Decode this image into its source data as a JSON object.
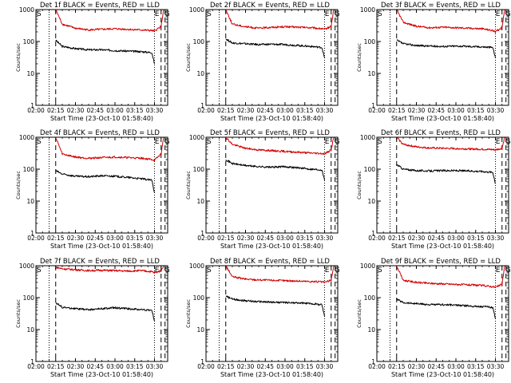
{
  "figure": {
    "colors": {
      "events": "#000000",
      "lld": "#d40000",
      "axes": "#000000",
      "background": "#ffffff"
    },
    "common": {
      "xlabel": "Start Time (23-Oct-10 01:58:40)",
      "ylabel": "Counts/sec",
      "xticks": [
        "02:00",
        "02:15",
        "02:30",
        "02:45",
        "03:00",
        "03:15",
        "03:30"
      ],
      "yticks": [
        "1",
        "10",
        "100",
        "1000"
      ],
      "markers": {
        "s": "S",
        "e": "E",
        "a": "A",
        "f": "F",
        "g": "G"
      }
    }
  },
  "chart_data": [
    {
      "type": "line",
      "title": "Det 1f BLACK = Events, RED = LLD",
      "xlabel": "Start Time (23-Oct-10 01:58:40)",
      "ylabel": "Counts/sec",
      "x_unit": "minutes after 02:00",
      "xlim": [
        0,
        100
      ],
      "ylim": [
        1,
        1000
      ],
      "yscale": "log",
      "x_dotted": [
        10,
        90
      ],
      "x_dashed": [
        15,
        95,
        98
      ],
      "top_labels": [
        "S",
        "E",
        "G"
      ],
      "series": [
        {
          "name": "Events",
          "color": "#000000",
          "x": [
            15,
            20,
            30,
            40,
            50,
            60,
            70,
            80,
            88,
            90
          ],
          "y": [
            110,
            70,
            60,
            55,
            55,
            52,
            50,
            48,
            45,
            20
          ]
        },
        {
          "name": "LLD",
          "color": "#d40000",
          "x": [
            15,
            20,
            30,
            40,
            50,
            60,
            70,
            80,
            88,
            90,
            95,
            97
          ],
          "y": [
            1000,
            350,
            260,
            230,
            240,
            250,
            240,
            230,
            220,
            210,
            300,
            1000
          ]
        }
      ]
    },
    {
      "type": "line",
      "title": "Det 2f BLACK = Events, RED = LLD",
      "xlabel": "Start Time (23-Oct-10 01:58:40)",
      "ylabel": "Counts/sec",
      "x_unit": "minutes after 02:00",
      "xlim": [
        0,
        100
      ],
      "ylim": [
        1,
        1000
      ],
      "yscale": "log",
      "x_dotted": [
        10,
        90
      ],
      "x_dashed": [
        15,
        95,
        98
      ],
      "top_labels": [
        "S",
        "E",
        "G"
      ],
      "series": [
        {
          "name": "Events",
          "color": "#000000",
          "x": [
            15,
            20,
            30,
            40,
            50,
            60,
            70,
            80,
            88,
            90
          ],
          "y": [
            120,
            90,
            85,
            80,
            82,
            80,
            75,
            70,
            65,
            30
          ]
        },
        {
          "name": "LLD",
          "color": "#d40000",
          "x": [
            15,
            20,
            30,
            40,
            50,
            60,
            70,
            80,
            88,
            90,
            95,
            97
          ],
          "y": [
            1000,
            350,
            290,
            260,
            280,
            290,
            280,
            270,
            250,
            240,
            300,
            1000
          ]
        }
      ]
    },
    {
      "type": "line",
      "title": "Det 3f BLACK = Events, RED = LLD",
      "xlabel": "Start Time (23-Oct-10 01:58:40)",
      "ylabel": "Counts/sec",
      "x_unit": "minutes after 02:00",
      "xlim": [
        0,
        100
      ],
      "ylim": [
        1,
        1000
      ],
      "yscale": "log",
      "x_dotted": [
        10,
        90
      ],
      "x_dashed": [
        15,
        95,
        98
      ],
      "top_labels": [
        "S",
        "E",
        "G"
      ],
      "series": [
        {
          "name": "Events",
          "color": "#000000",
          "x": [
            15,
            20,
            30,
            40,
            50,
            60,
            70,
            80,
            88,
            90
          ],
          "y": [
            110,
            85,
            75,
            72,
            70,
            72,
            70,
            68,
            65,
            30
          ]
        },
        {
          "name": "LLD",
          "color": "#d40000",
          "x": [
            15,
            20,
            30,
            40,
            50,
            60,
            70,
            80,
            88,
            90,
            95,
            97
          ],
          "y": [
            1000,
            400,
            300,
            270,
            280,
            270,
            260,
            250,
            220,
            200,
            280,
            1000
          ]
        }
      ]
    },
    {
      "type": "line",
      "title": "Det 4f BLACK = Events, RED = LLD",
      "xlabel": "Start Time (23-Oct-10 01:58:40)",
      "ylabel": "Counts/sec",
      "x_unit": "minutes after 02:00",
      "xlim": [
        0,
        100
      ],
      "ylim": [
        1,
        1000
      ],
      "yscale": "log",
      "x_dotted": [
        10,
        90
      ],
      "x_dashed": [
        15,
        95,
        98
      ],
      "top_labels": [
        "S",
        "E",
        "G"
      ],
      "series": [
        {
          "name": "Events",
          "color": "#000000",
          "x": [
            15,
            20,
            30,
            40,
            50,
            60,
            70,
            80,
            88,
            90
          ],
          "y": [
            90,
            70,
            60,
            58,
            62,
            60,
            55,
            50,
            45,
            18
          ]
        },
        {
          "name": "LLD",
          "color": "#d40000",
          "x": [
            15,
            20,
            30,
            40,
            50,
            60,
            70,
            80,
            88,
            90,
            95,
            97
          ],
          "y": [
            1000,
            300,
            240,
            220,
            230,
            240,
            230,
            220,
            200,
            190,
            300,
            1000
          ]
        }
      ]
    },
    {
      "type": "line",
      "title": "Det 5f BLACK = Events, RED = LLD",
      "xlabel": "Start Time (23-Oct-10 01:58:40)",
      "ylabel": "Counts/sec",
      "x_unit": "minutes after 02:00",
      "xlim": [
        0,
        100
      ],
      "ylim": [
        1,
        1000
      ],
      "yscale": "log",
      "x_dotted": [
        10,
        90
      ],
      "x_dashed": [
        15,
        95,
        98
      ],
      "top_labels": [
        "S",
        "E",
        "G"
      ],
      "series": [
        {
          "name": "Events",
          "color": "#000000",
          "x": [
            15,
            20,
            30,
            40,
            50,
            60,
            70,
            80,
            88,
            90
          ],
          "y": [
            200,
            150,
            130,
            120,
            115,
            120,
            110,
            100,
            95,
            45
          ]
        },
        {
          "name": "LLD",
          "color": "#d40000",
          "x": [
            15,
            20,
            30,
            40,
            50,
            60,
            70,
            80,
            88,
            90,
            95,
            97
          ],
          "y": [
            1000,
            600,
            450,
            400,
            380,
            360,
            340,
            320,
            310,
            300,
            400,
            1000
          ]
        }
      ]
    },
    {
      "type": "line",
      "title": "Det 6f BLACK = Events, RED = LLD",
      "xlabel": "Start Time (23-Oct-10 01:58:40)",
      "ylabel": "Counts/sec",
      "x_unit": "minutes after 02:00",
      "xlim": [
        0,
        100
      ],
      "ylim": [
        1,
        1000
      ],
      "yscale": "log",
      "x_dotted": [
        10,
        90
      ],
      "x_dashed": [
        15,
        95,
        98
      ],
      "top_labels": [
        "S",
        "E",
        "G"
      ],
      "series": [
        {
          "name": "Events",
          "color": "#000000",
          "x": [
            15,
            20,
            30,
            40,
            50,
            60,
            70,
            80,
            88,
            90
          ],
          "y": [
            140,
            100,
            90,
            88,
            90,
            90,
            88,
            85,
            80,
            35
          ]
        },
        {
          "name": "LLD",
          "color": "#d40000",
          "x": [
            15,
            20,
            30,
            40,
            50,
            60,
            70,
            80,
            88,
            90,
            95,
            97
          ],
          "y": [
            1000,
            600,
            500,
            460,
            450,
            440,
            430,
            420,
            410,
            400,
            450,
            1000
          ]
        }
      ]
    },
    {
      "type": "line",
      "title": "Det 7f BLACK = Events, RED = LLD",
      "xlabel": "Start Time (23-Oct-10 01:58:40)",
      "ylabel": "Counts/sec",
      "x_unit": "minutes after 02:00",
      "xlim": [
        0,
        100
      ],
      "ylim": [
        1,
        1000
      ],
      "yscale": "log",
      "x_dotted": [
        10,
        90
      ],
      "x_dashed": [
        15,
        95,
        98
      ],
      "top_labels": [
        "S",
        "E",
        "G"
      ],
      "series": [
        {
          "name": "Events",
          "color": "#000000",
          "x": [
            15,
            20,
            30,
            40,
            50,
            60,
            70,
            80,
            88,
            90
          ],
          "y": [
            70,
            50,
            45,
            42,
            45,
            48,
            45,
            42,
            40,
            18
          ]
        },
        {
          "name": "LLD",
          "color": "#d40000",
          "x": [
            15,
            20,
            30,
            40,
            50,
            60,
            70,
            80,
            88,
            90,
            95,
            97
          ],
          "y": [
            900,
            800,
            750,
            700,
            720,
            700,
            680,
            700,
            650,
            600,
            700,
            1000
          ]
        }
      ]
    },
    {
      "type": "line",
      "title": "Det 8f BLACK = Events, RED = LLD",
      "xlabel": "Start Time (23-Oct-10 01:58:40)",
      "ylabel": "Counts/sec",
      "x_unit": "minutes after 02:00",
      "xlim": [
        0,
        100
      ],
      "ylim": [
        1,
        1000
      ],
      "yscale": "log",
      "x_dotted": [
        10,
        90
      ],
      "x_dashed": [
        15,
        95,
        98
      ],
      "top_labels": [
        "S",
        "E",
        "G"
      ],
      "series": [
        {
          "name": "Events",
          "color": "#000000",
          "x": [
            15,
            20,
            30,
            40,
            50,
            60,
            70,
            80,
            88,
            90
          ],
          "y": [
            110,
            90,
            80,
            75,
            72,
            70,
            68,
            65,
            60,
            25
          ]
        },
        {
          "name": "LLD",
          "color": "#d40000",
          "x": [
            15,
            20,
            30,
            40,
            50,
            60,
            70,
            80,
            88,
            90,
            95,
            97
          ],
          "y": [
            1000,
            450,
            380,
            360,
            350,
            340,
            330,
            320,
            310,
            300,
            350,
            1000
          ]
        }
      ]
    },
    {
      "type": "line",
      "title": "Det 9f BLACK = Events, RED = LLD",
      "xlabel": "Start Time (23-Oct-10 01:58:40)",
      "ylabel": "Counts/sec",
      "x_unit": "minutes after 02:00",
      "xlim": [
        0,
        100
      ],
      "ylim": [
        1,
        1000
      ],
      "yscale": "log",
      "x_dotted": [
        10,
        90
      ],
      "x_dashed": [
        15,
        95,
        98
      ],
      "top_labels": [
        "S",
        "E",
        "G"
      ],
      "series": [
        {
          "name": "Events",
          "color": "#000000",
          "x": [
            15,
            20,
            30,
            40,
            50,
            60,
            70,
            80,
            88,
            90
          ],
          "y": [
            90,
            70,
            65,
            60,
            60,
            58,
            55,
            52,
            50,
            22
          ]
        },
        {
          "name": "LLD",
          "color": "#d40000",
          "x": [
            15,
            20,
            30,
            40,
            50,
            60,
            70,
            80,
            88,
            90,
            95,
            97
          ],
          "y": [
            1000,
            350,
            300,
            280,
            270,
            260,
            250,
            240,
            220,
            210,
            260,
            1000
          ]
        }
      ]
    }
  ]
}
